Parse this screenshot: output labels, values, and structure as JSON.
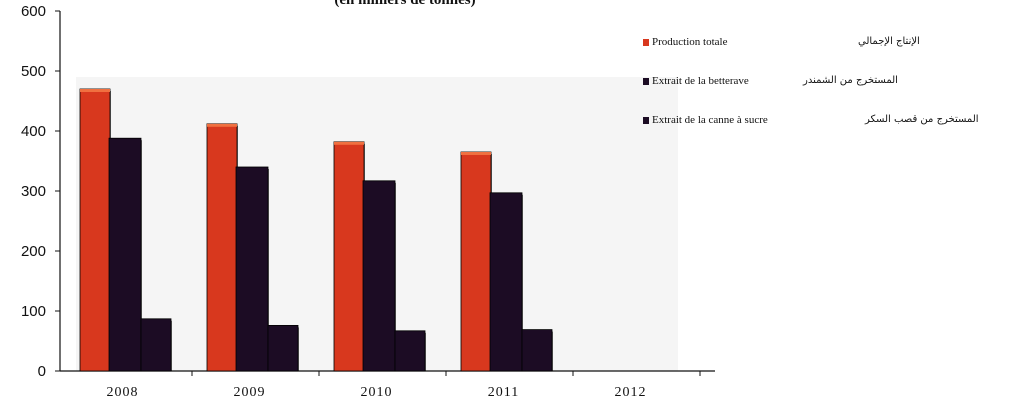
{
  "chart_data": {
    "type": "bar",
    "title": "(en milliers de tonnes)",
    "categories": [
      "2008",
      "2009",
      "2010",
      "2011",
      "2012"
    ],
    "series": [
      {
        "name": "Production totale",
        "name_ar": "الإنتاج الإجمالي",
        "color": "#d8381e",
        "values": [
          470,
          412,
          382,
          365,
          0
        ]
      },
      {
        "name": "Extrait de la betterave",
        "name_ar": "المستخرج من الشمندر",
        "color": "#1c0c24",
        "values": [
          388,
          340,
          317,
          297,
          0
        ]
      },
      {
        "name": "Extrait de la canne à sucre",
        "name_ar": "المستخرج من قصب السكر",
        "color": "#1c0c24",
        "values": [
          87,
          76,
          67,
          69,
          0
        ]
      }
    ],
    "yticks": [
      "0",
      "100",
      "200",
      "300",
      "400",
      "500",
      "600"
    ],
    "ylim": [
      0,
      600
    ],
    "xlabel": "",
    "ylabel": "",
    "legend_position": "right",
    "grid": false
  }
}
